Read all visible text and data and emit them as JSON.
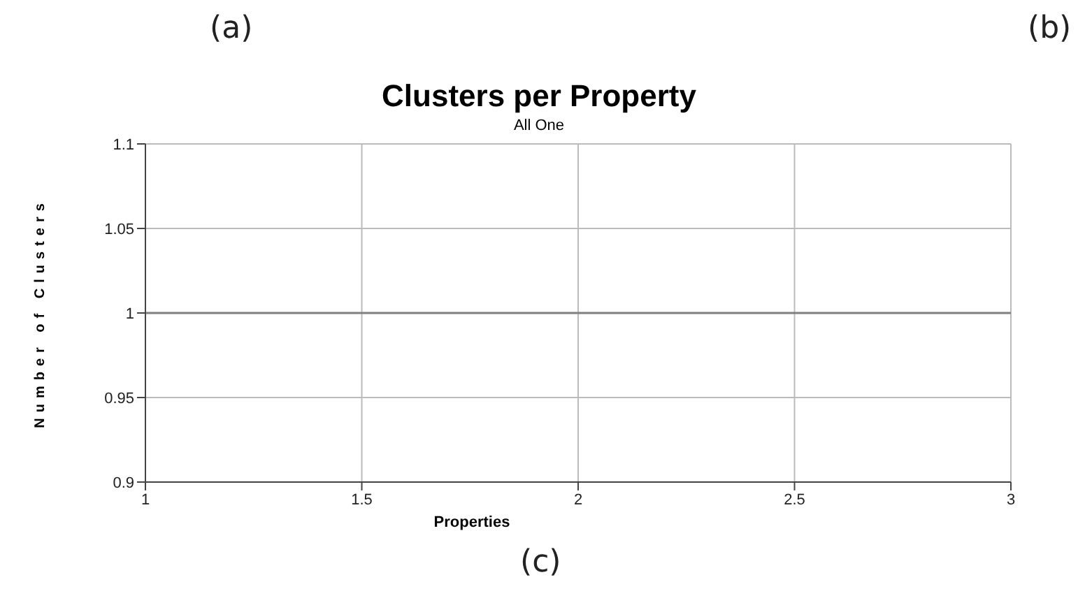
{
  "chart_data": {
    "type": "line",
    "title": "Clusters per Property",
    "subtitle": "All One",
    "xlabel": "Properties",
    "ylabel": "Number of Clusters",
    "annotations": [
      "(a)",
      "(b)",
      "(c)"
    ],
    "x": [
      1,
      3
    ],
    "series": [
      {
        "color": "#7f7f7f",
        "values": [
          1,
          1
        ]
      }
    ],
    "xlim": [
      1,
      3
    ],
    "xticks": [
      1,
      1.5,
      2,
      2.5,
      3
    ],
    "ylim": [
      0.9,
      1.1
    ],
    "yticks": [
      0.9,
      0.95,
      1,
      1.05,
      1.1
    ],
    "grid": true,
    "marker": "none",
    "line_style": "solid",
    "legend": false
  }
}
